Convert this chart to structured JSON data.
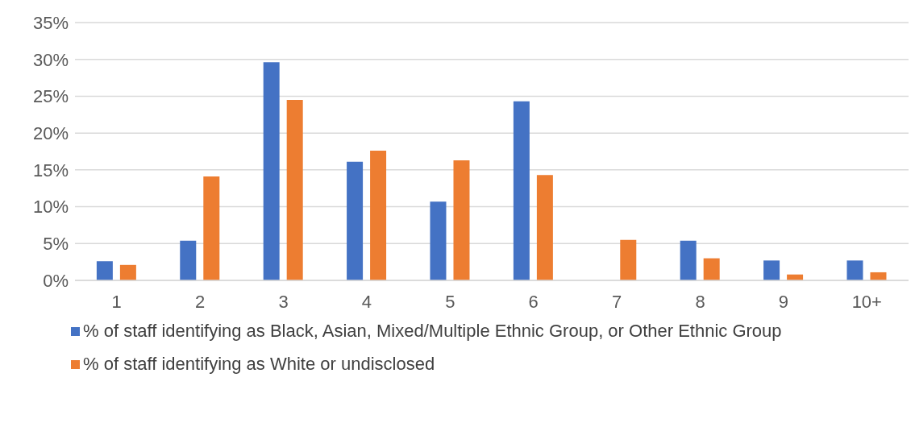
{
  "chart_data": {
    "type": "bar",
    "categories": [
      "1",
      "2",
      "3",
      "4",
      "5",
      "6",
      "7",
      "8",
      "9",
      "10+"
    ],
    "series": [
      {
        "name": "% of staff identifying as Black, Asian, Mixed/Multiple Ethnic Group, or Other Ethnic Group",
        "color": "#4472c4",
        "values": [
          2.6,
          5.4,
          29.6,
          16.1,
          10.7,
          24.3,
          0,
          5.4,
          2.7,
          2.7
        ]
      },
      {
        "name": "% of staff identifying as White or undisclosed",
        "color": "#ed7d31",
        "values": [
          2.1,
          14.1,
          24.5,
          17.6,
          16.3,
          14.3,
          5.5,
          3.0,
          0.8,
          1.1
        ]
      }
    ],
    "ylim": [
      0,
      35
    ],
    "yticks": [
      {
        "value": 0,
        "label": "0%"
      },
      {
        "value": 5,
        "label": "5%"
      },
      {
        "value": 10,
        "label": "10%"
      },
      {
        "value": 15,
        "label": "15%"
      },
      {
        "value": 20,
        "label": "20%"
      },
      {
        "value": 25,
        "label": "25%"
      },
      {
        "value": 30,
        "label": "30%"
      },
      {
        "value": 35,
        "label": "35%"
      }
    ],
    "grid": "y",
    "legend": "bottom"
  }
}
